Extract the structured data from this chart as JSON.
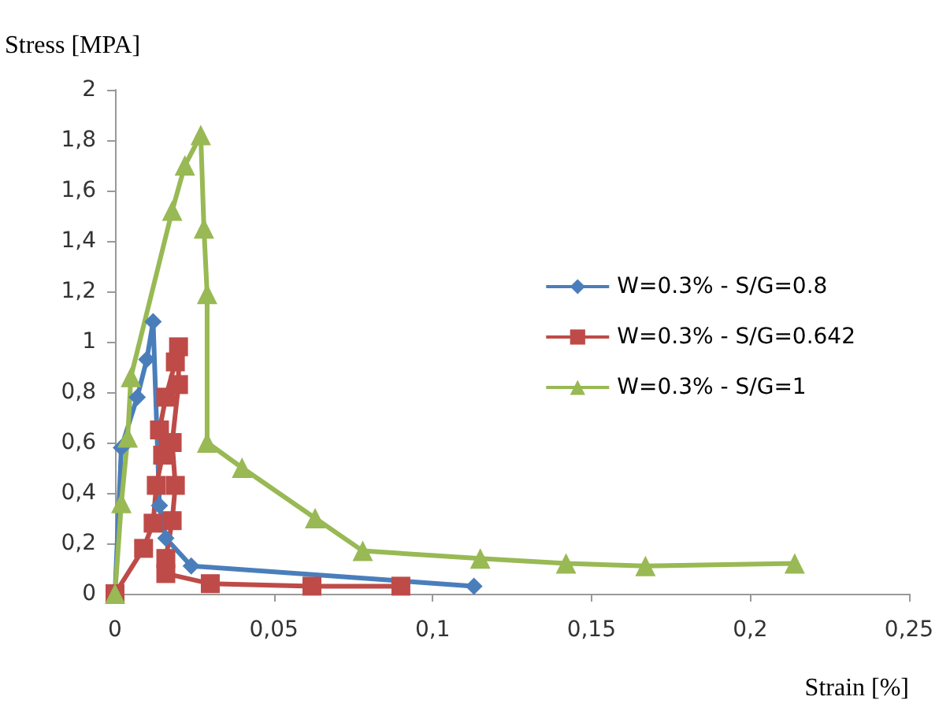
{
  "chart_data": {
    "type": "line",
    "xlabel": "Strain [%]",
    "ylabel": "Stress [MPA]",
    "xlim": [
      0,
      0.25
    ],
    "ylim": [
      0,
      2
    ],
    "xticks": [
      0,
      {
        "value": 0.05,
        "label": "0,05"
      },
      {
        "value": 0.1,
        "label": "0,1"
      },
      {
        "value": 0.15,
        "label": "0,15"
      },
      {
        "value": 0.2,
        "label": "0,2"
      },
      {
        "value": 0.25,
        "label": "0,25"
      }
    ],
    "yticks": [
      0,
      {
        "value": 0.2,
        "label": "0,2"
      },
      {
        "value": 0.4,
        "label": "0,4"
      },
      {
        "value": 0.6,
        "label": "0,6"
      },
      {
        "value": 0.8,
        "label": "0,8"
      },
      1,
      {
        "value": 1.2,
        "label": "1,2"
      },
      {
        "value": 1.4,
        "label": "1,4"
      },
      {
        "value": 1.6,
        "label": "1,6"
      },
      {
        "value": 1.8,
        "label": "1,8"
      },
      2
    ],
    "grid": false,
    "legend": "right",
    "series": [
      {
        "name": "W=0.3% - S/G=0.8",
        "color": "#4a7ebb",
        "marker": "diamond",
        "x": [
          0,
          0.002,
          0.007,
          0.01,
          0.012,
          0.014,
          0.016,
          0.024,
          0.113
        ],
        "values": [
          0,
          0.58,
          0.78,
          0.93,
          1.08,
          0.35,
          0.22,
          0.11,
          0.03
        ]
      },
      {
        "name": "W=0.3% - S/G=0.642",
        "color": "#be4b48",
        "marker": "square",
        "x": [
          0,
          0.009,
          0.012,
          0.013,
          0.015,
          0.014,
          0.016,
          0.019,
          0.02,
          0.02,
          0.018,
          0.019,
          0.018,
          0.016,
          0.016,
          0.03,
          0.062,
          0.09
        ],
        "values": [
          0,
          0.18,
          0.28,
          0.43,
          0.55,
          0.65,
          0.78,
          0.92,
          0.98,
          0.83,
          0.6,
          0.43,
          0.29,
          0.14,
          0.08,
          0.04,
          0.03,
          0.03
        ]
      },
      {
        "name": "W=0.3% - S/G=1",
        "color": "#98b954",
        "marker": "triangle",
        "x": [
          0,
          0.002,
          0.004,
          0.005,
          0.018,
          0.022,
          0.027,
          0.028,
          0.029,
          0.029,
          0.04,
          0.063,
          0.078,
          0.115,
          0.142,
          0.167,
          0.214
        ],
        "values": [
          0,
          0.36,
          0.62,
          0.86,
          1.52,
          1.7,
          1.82,
          1.45,
          1.19,
          0.6,
          0.5,
          0.3,
          0.17,
          0.14,
          0.12,
          0.11,
          0.12
        ]
      }
    ]
  }
}
